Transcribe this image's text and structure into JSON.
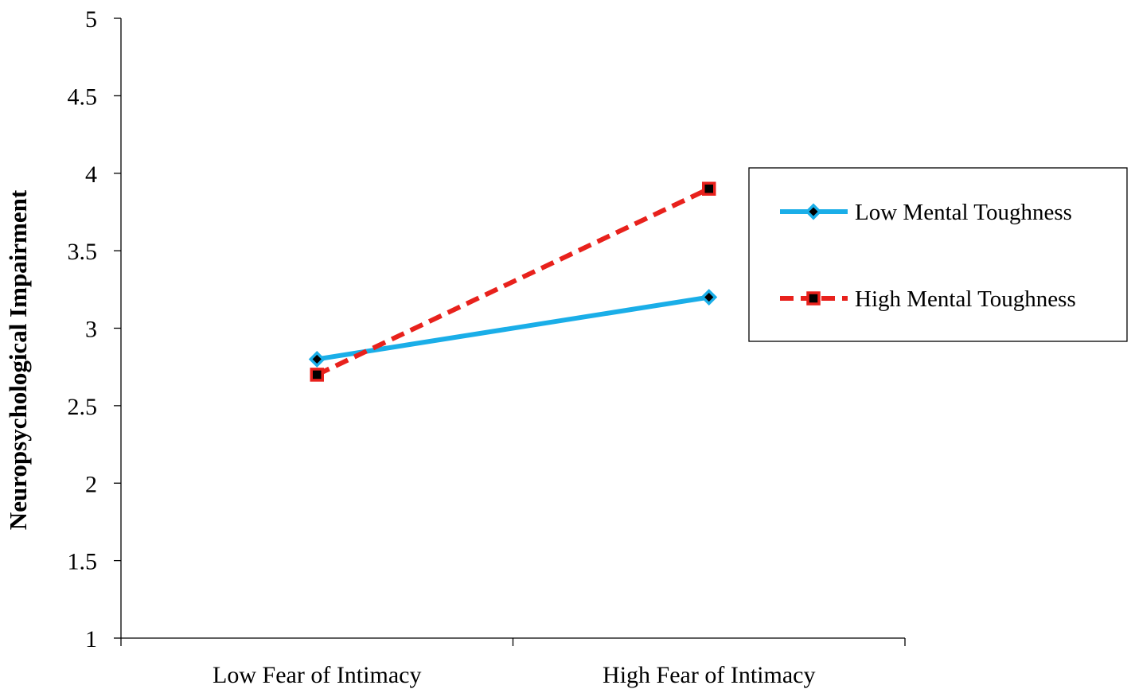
{
  "chart_data": {
    "type": "line",
    "title": "",
    "xlabel": "",
    "ylabel": "Neuropsychological Impairment",
    "categories": [
      "Low Fear of Intimacy",
      "High Fear of Intimacy"
    ],
    "ylim": [
      1,
      5
    ],
    "yticks": [
      1,
      1.5,
      2,
      2.5,
      3,
      3.5,
      4,
      4.5,
      5
    ],
    "ytick_labels": [
      "1",
      "1.5",
      "2",
      "2.5",
      "3",
      "3.5",
      "4",
      "4.5",
      "5"
    ],
    "grid": false,
    "legend_position": "right",
    "series": [
      {
        "name": "Low Mental Toughness",
        "values": [
          2.8,
          3.2
        ],
        "color": "#1aaee8",
        "line_style": "solid",
        "marker": "diamond"
      },
      {
        "name": "High Mental Toughness",
        "values": [
          2.7,
          3.9
        ],
        "color": "#e8211c",
        "line_style": "dashed",
        "marker": "square"
      }
    ]
  }
}
